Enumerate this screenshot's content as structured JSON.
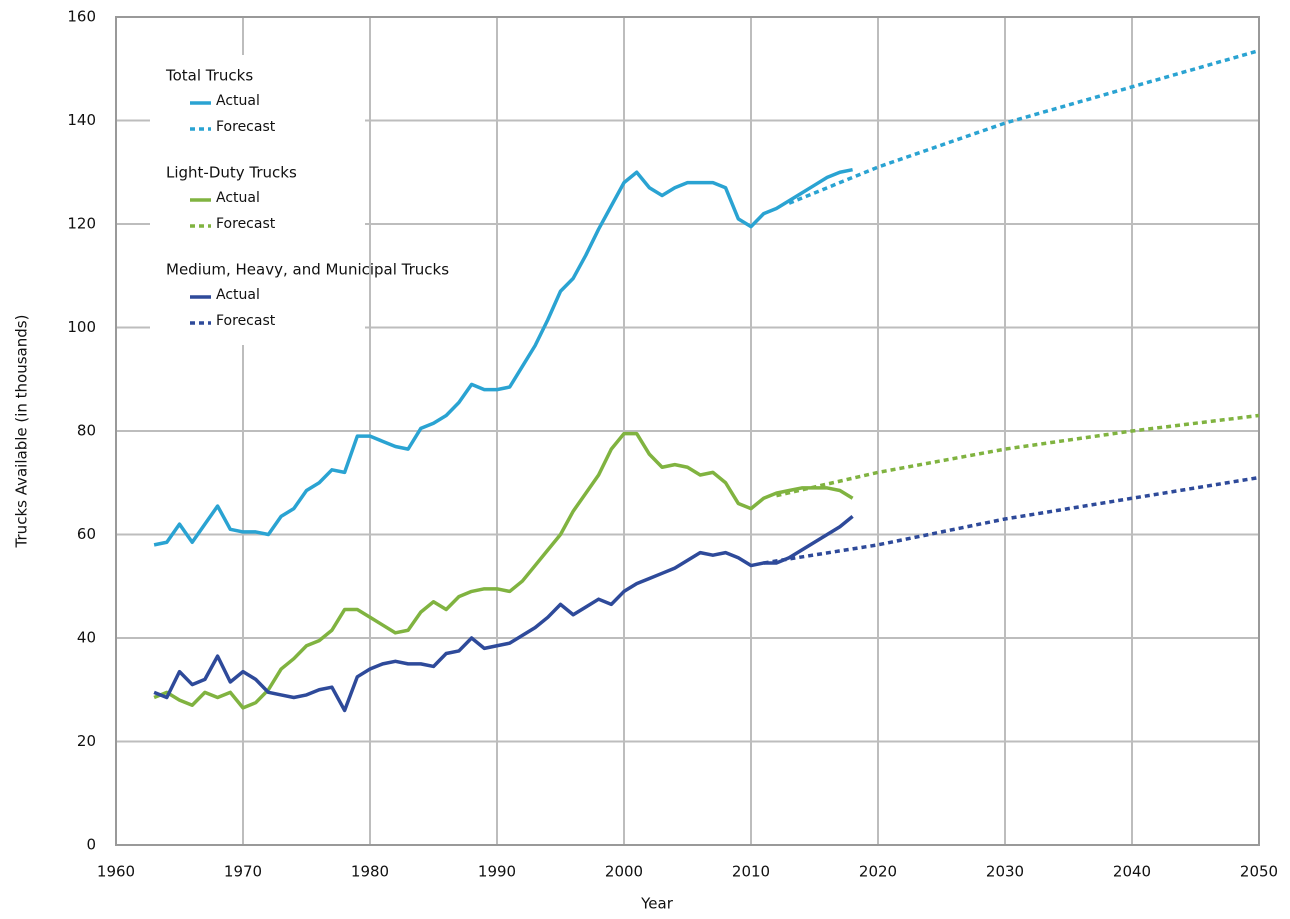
{
  "chart_data": {
    "type": "line",
    "xlabel": "Year",
    "ylabel": "Trucks Available (in thousands)",
    "xlim": [
      1960,
      2050
    ],
    "xticks": [
      1960,
      1970,
      1980,
      1990,
      2000,
      2010,
      2020,
      2030,
      2040,
      2050
    ],
    "ylim": [
      0,
      160
    ],
    "yticks": [
      0,
      20,
      40,
      60,
      80,
      100,
      120,
      140,
      160
    ],
    "grid": true,
    "legend_position": "upper left",
    "legend_groups": [
      {
        "title": "Total Trucks",
        "series": [
          {
            "name": "Actual",
            "color": "#2aa3d2",
            "style": "solid",
            "x": [
              1963,
              1964,
              1965,
              1966,
              1967,
              1968,
              1969,
              1970,
              1971,
              1972,
              1973,
              1974,
              1975,
              1976,
              1977,
              1978,
              1979,
              1980,
              1981,
              1982,
              1983,
              1984,
              1985,
              1986,
              1987,
              1988,
              1989,
              1990,
              1991,
              1992,
              1993,
              1994,
              1995,
              1996,
              1997,
              1998,
              1999,
              2000,
              2001,
              2002,
              2003,
              2004,
              2005,
              2006,
              2007,
              2008,
              2009,
              2010,
              2011,
              2012,
              2013,
              2014,
              2015,
              2016,
              2017,
              2018
            ],
            "values": [
              58,
              58.5,
              62,
              58.5,
              62,
              65.5,
              61,
              60.5,
              60.5,
              60,
              63.5,
              65,
              68.5,
              70,
              72.5,
              72,
              79,
              79,
              78,
              77,
              76.5,
              80.5,
              81.5,
              83,
              85.5,
              89,
              88,
              88,
              88.5,
              92.5,
              96.5,
              101.5,
              107,
              109.5,
              114,
              119,
              123.5,
              128,
              130,
              127,
              125.5,
              127,
              128,
              128,
              128,
              127,
              121,
              119.5,
              122,
              123,
              124.5,
              126,
              127.5,
              129,
              130,
              130.5
            ]
          },
          {
            "name": "Forecast",
            "color": "#2aa3d2",
            "style": "dotted",
            "x": [
              2013,
              2020,
              2030,
              2040,
              2050
            ],
            "values": [
              124,
              131,
              139.5,
              146.5,
              153.5
            ]
          }
        ]
      },
      {
        "title": "Light-Duty Trucks",
        "series": [
          {
            "name": "Actual",
            "color": "#80b340",
            "style": "solid",
            "x": [
              1963,
              1964,
              1965,
              1966,
              1967,
              1968,
              1969,
              1970,
              1971,
              1972,
              1973,
              1974,
              1975,
              1976,
              1977,
              1978,
              1979,
              1980,
              1981,
              1982,
              1983,
              1984,
              1985,
              1986,
              1987,
              1988,
              1989,
              1990,
              1991,
              1992,
              1993,
              1994,
              1995,
              1996,
              1997,
              1998,
              1999,
              2000,
              2001,
              2002,
              2003,
              2004,
              2005,
              2006,
              2007,
              2008,
              2009,
              2010,
              2011,
              2012,
              2013,
              2014,
              2015,
              2016,
              2017,
              2018
            ],
            "values": [
              28.5,
              29.5,
              28,
              27,
              29.5,
              28.5,
              29.5,
              26.5,
              27.5,
              30,
              34,
              36,
              38.5,
              39.5,
              41.5,
              45.5,
              45.5,
              44,
              42.5,
              41,
              41.5,
              45,
              47,
              45.5,
              48,
              49,
              49.5,
              49.5,
              49,
              51,
              54,
              57,
              60,
              64.5,
              68,
              71.5,
              76.5,
              79.5,
              79.5,
              75.5,
              73,
              73.5,
              73,
              71.5,
              72,
              70,
              66,
              65,
              67,
              68,
              68.5,
              69,
              69,
              69,
              68.5,
              67
            ]
          },
          {
            "name": "Forecast",
            "color": "#80b340",
            "style": "dotted",
            "x": [
              2012,
              2020,
              2030,
              2040,
              2050
            ],
            "values": [
              67.5,
              72,
              76.5,
              80,
              83
            ]
          }
        ]
      },
      {
        "title": "Medium, Heavy, and Municipal Trucks",
        "series": [
          {
            "name": "Actual",
            "color": "#2e4a9a",
            "style": "solid",
            "x": [
              1963,
              1964,
              1965,
              1966,
              1967,
              1968,
              1969,
              1970,
              1971,
              1972,
              1973,
              1974,
              1975,
              1976,
              1977,
              1978,
              1979,
              1980,
              1981,
              1982,
              1983,
              1984,
              1985,
              1986,
              1987,
              1988,
              1989,
              1990,
              1991,
              1992,
              1993,
              1994,
              1995,
              1996,
              1997,
              1998,
              1999,
              2000,
              2001,
              2002,
              2003,
              2004,
              2005,
              2006,
              2007,
              2008,
              2009,
              2010,
              2011,
              2012,
              2013,
              2014,
              2015,
              2016,
              2017,
              2018
            ],
            "values": [
              29.5,
              28.5,
              33.5,
              31,
              32,
              36.5,
              31.5,
              33.5,
              32,
              29.5,
              29,
              28.5,
              29,
              30,
              30.5,
              26,
              32.5,
              34,
              35,
              35.5,
              35,
              35,
              34.5,
              37,
              37.5,
              40,
              38,
              38.5,
              39,
              40.5,
              42,
              44,
              46.5,
              44.5,
              46,
              47.5,
              46.5,
              49,
              50.5,
              51.5,
              52.5,
              53.5,
              55,
              56.5,
              56,
              56.5,
              55.5,
              54,
              54.5,
              54.5,
              55.5,
              57,
              58.5,
              60,
              61.5,
              63.5
            ]
          },
          {
            "name": "Forecast",
            "color": "#2e4a9a",
            "style": "dotted",
            "x": [
              2011,
              2020,
              2030,
              2040,
              2050
            ],
            "values": [
              54.5,
              58,
              63,
              67,
              71
            ]
          }
        ]
      }
    ]
  }
}
